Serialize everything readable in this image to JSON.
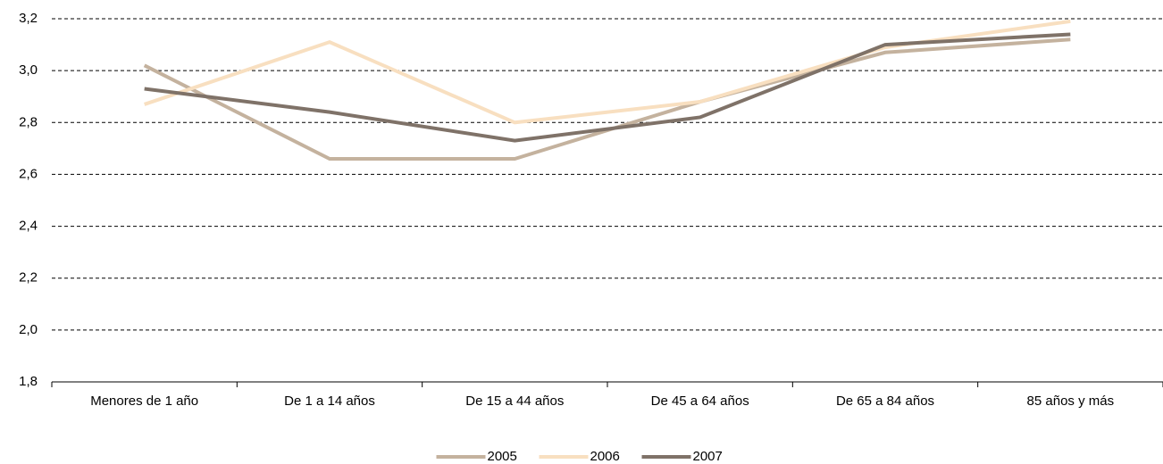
{
  "chart_data": {
    "type": "line",
    "categories": [
      "Menores de 1 año",
      "De 1 a 14 años",
      "De 15 a 44 años",
      "De 45 a 64 años",
      "De 65 a 84 años",
      "85 años y más"
    ],
    "series": [
      {
        "name": "2005",
        "color": "#c4b29e",
        "values": [
          3.02,
          2.66,
          2.66,
          2.88,
          3.07,
          3.12
        ]
      },
      {
        "name": "2006",
        "color": "#f8dfc0",
        "values": [
          2.87,
          3.11,
          2.8,
          2.88,
          3.09,
          3.19
        ]
      },
      {
        "name": "2007",
        "color": "#7f7268",
        "values": [
          2.93,
          2.84,
          2.73,
          2.82,
          3.1,
          3.14
        ]
      }
    ],
    "ylim": [
      1.8,
      3.2
    ],
    "yticks": [
      {
        "value": 1.8,
        "label": "1,8"
      },
      {
        "value": 2.0,
        "label": "2,0"
      },
      {
        "value": 2.2,
        "label": "2,2"
      },
      {
        "value": 2.4,
        "label": "2,4"
      },
      {
        "value": 2.6,
        "label": "2,6"
      },
      {
        "value": 2.8,
        "label": "2,8"
      },
      {
        "value": 3.0,
        "label": "3,0"
      },
      {
        "value": 3.2,
        "label": "3,2"
      }
    ],
    "grid": true,
    "legend": "bottom"
  }
}
